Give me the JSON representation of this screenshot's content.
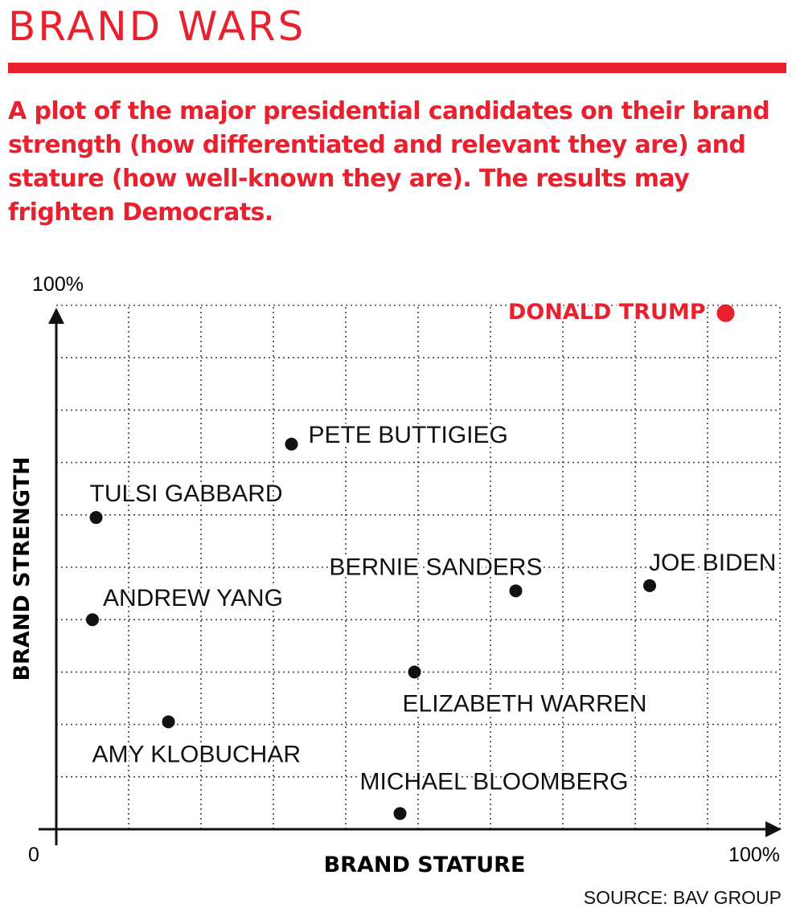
{
  "header": {
    "title": "BRAND WARS",
    "subtitle": "A plot of the major presidential candidates on their brand strength (how differentiated and relevant they are) and stature (how well-known they are). The results may frighten Democrats."
  },
  "footer": {
    "source": "SOURCE: BAV GROUP"
  },
  "colors": {
    "accent": "#e8212e",
    "ink": "#111111",
    "grid": "#444444"
  },
  "chart_data": {
    "type": "scatter",
    "xlabel": "BRAND STATURE",
    "ylabel": "BRAND STRENGTH",
    "xlim": [
      0,
      100
    ],
    "ylim": [
      0,
      100
    ],
    "x_tick_labels": {
      "min": "0",
      "max": "100%"
    },
    "y_tick_labels": {
      "max": "100%"
    },
    "grid": true,
    "points": [
      {
        "name": "DONALD TRUMP",
        "x": 92.5,
        "y": 98.5,
        "highlight": true
      },
      {
        "name": "PETE BUTTIGIEG",
        "x": 32.5,
        "y": 73.5
      },
      {
        "name": "TULSI GABBARD",
        "x": 5.5,
        "y": 59.5
      },
      {
        "name": "BERNIE SANDERS",
        "x": 63.5,
        "y": 45.5
      },
      {
        "name": "JOE BIDEN",
        "x": 82,
        "y": 46.5
      },
      {
        "name": "ANDREW YANG",
        "x": 5,
        "y": 40
      },
      {
        "name": "ELIZABETH WARREN",
        "x": 49.5,
        "y": 30
      },
      {
        "name": "AMY KLOBUCHAR",
        "x": 15.5,
        "y": 20.5
      },
      {
        "name": "MICHAEL BLOOMBERG",
        "x": 47.5,
        "y": 3
      }
    ]
  }
}
